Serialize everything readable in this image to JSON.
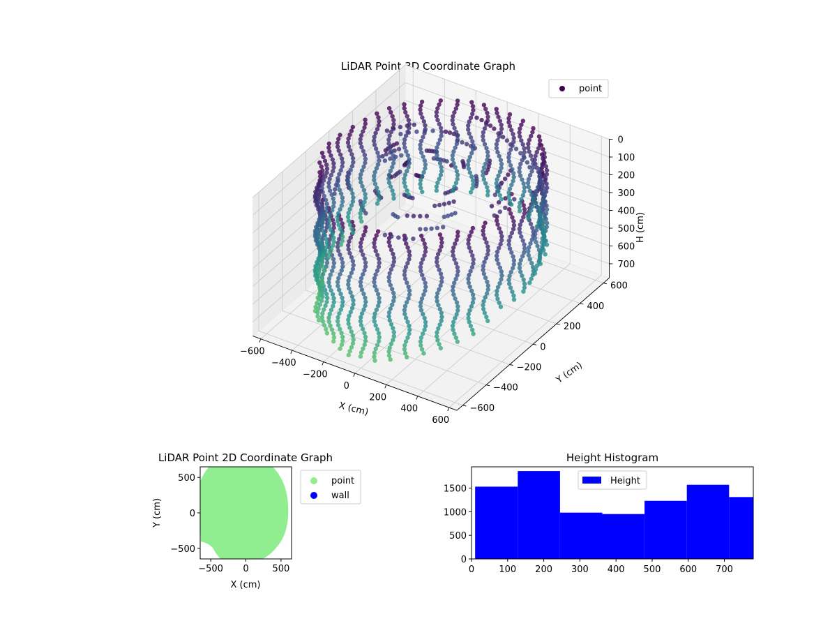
{
  "chart_data": [
    {
      "type": "scatter",
      "projection": "3d",
      "title": "LiDAR Point 3D Coordinate Graph",
      "xlabel": "X (cm)",
      "ylabel": "Y (cm)",
      "zlabel": "H (cm)",
      "xlim": [
        -650,
        650
      ],
      "ylim": [
        -650,
        650
      ],
      "zlim": [
        780,
        0
      ],
      "x_ticks": [
        -600,
        -400,
        -200,
        0,
        200,
        400,
        600
      ],
      "y_ticks": [
        -600,
        -400,
        -200,
        0,
        200,
        400,
        600
      ],
      "z_ticks": [
        0,
        100,
        200,
        300,
        400,
        500,
        600,
        700
      ],
      "z_inverted": true,
      "grid": true,
      "colormap": [
        "#440154",
        "#3b528b",
        "#21918c",
        "#5ec962",
        "#fde725"
      ],
      "series": [
        {
          "name": "point",
          "color": "#440154",
          "description_shape": "circular wall of vertical point columns around a room, radius ~580 cm, heights 0–780 cm",
          "radius": 580,
          "height_range": [
            0,
            780
          ],
          "columns": 44
        }
      ],
      "legend": {
        "position": "top-right",
        "entries": [
          "point"
        ]
      }
    },
    {
      "type": "scatter",
      "title": "LiDAR Point 2D Coordinate Graph",
      "xlabel": "X (cm)",
      "ylabel": "Y (cm)",
      "xlim": [
        -650,
        650
      ],
      "ylim": [
        -650,
        650
      ],
      "x_ticks": [
        -500,
        0,
        500
      ],
      "y_ticks": [
        -500,
        0,
        500
      ],
      "series": [
        {
          "name": "point",
          "color": "#90ee90",
          "radius": 590
        },
        {
          "name": "wall",
          "color": "#0000ff"
        }
      ],
      "legend": {
        "position": "outside-right",
        "entries": [
          "point",
          "wall"
        ]
      }
    },
    {
      "type": "bar",
      "subtype": "histogram",
      "title": "Height Histogram",
      "xlabel": "",
      "ylabel": "",
      "color": "#0000ff",
      "xlim": [
        0,
        780
      ],
      "ylim": [
        0,
        1950
      ],
      "x_ticks": [
        0,
        100,
        200,
        300,
        400,
        500,
        600,
        700
      ],
      "y_ticks": [
        0,
        500,
        1000,
        1500
      ],
      "bins": [
        {
          "start": 10,
          "end": 128,
          "value": 1530
        },
        {
          "start": 128,
          "end": 245,
          "value": 1860
        },
        {
          "start": 245,
          "end": 362,
          "value": 980
        },
        {
          "start": 362,
          "end": 479,
          "value": 950
        },
        {
          "start": 479,
          "end": 596,
          "value": 1230
        },
        {
          "start": 596,
          "end": 713,
          "value": 1570
        },
        {
          "start": 713,
          "end": 780,
          "value": 1310
        }
      ],
      "legend": {
        "position": "top-center",
        "entries": [
          "Height"
        ]
      }
    }
  ]
}
